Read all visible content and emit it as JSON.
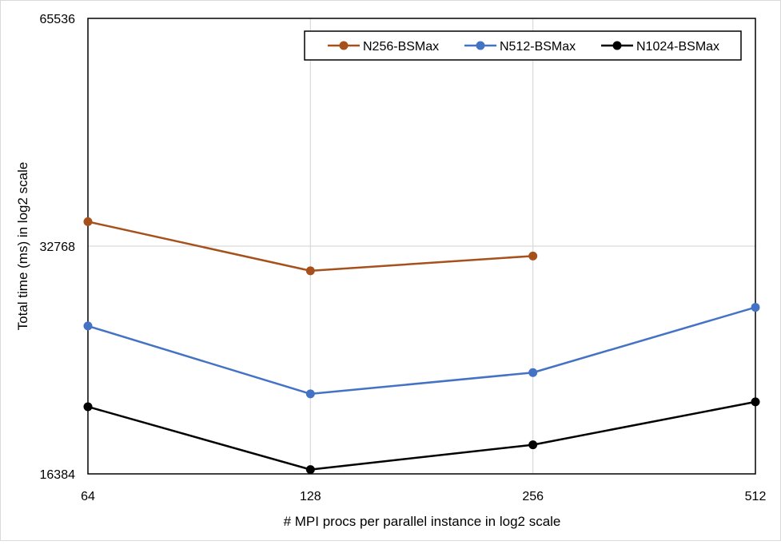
{
  "chart_data": {
    "type": "line",
    "title": "",
    "xlabel": "# MPI procs per parallel instance in log2 scale",
    "ylabel": "Total  time (ms) in log2 scale",
    "x": [
      64,
      128,
      256,
      512
    ],
    "x_tick_labels": [
      "64",
      "128",
      "256",
      "512"
    ],
    "x_scale": "log2",
    "y_scale": "log2",
    "ylim": [
      16384,
      65536
    ],
    "y_ticks": [
      16384,
      32768,
      65536
    ],
    "y_tick_labels": [
      "16384",
      "32768",
      "65536"
    ],
    "grid": true,
    "legend_position": "top-right",
    "series": [
      {
        "name": "N256-BSMax",
        "color": "#a6511c",
        "values": [
          35300,
          30400,
          31800,
          null
        ]
      },
      {
        "name": "N512-BSMax",
        "color": "#4472c4",
        "values": [
          25700,
          20900,
          22300,
          27200
        ]
      },
      {
        "name": "N1024-BSMax",
        "color": "#000000",
        "values": [
          20100,
          16600,
          17900,
          20400
        ]
      }
    ]
  }
}
